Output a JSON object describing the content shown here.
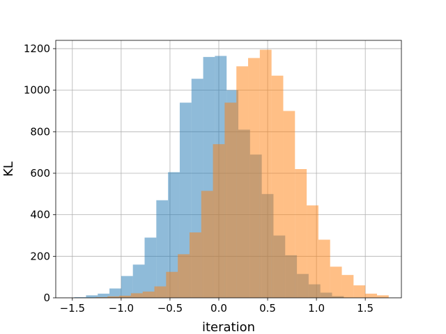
{
  "chart_data": {
    "type": "bar",
    "subtype": "overlapping-histogram",
    "xlabel": "iteration",
    "ylabel": "KL",
    "xlim": [
      -1.67,
      1.87
    ],
    "ylim": [
      0,
      1240
    ],
    "grid": true,
    "x_ticks": [
      -1.5,
      -1.0,
      -0.5,
      0.0,
      0.5,
      1.0,
      1.5
    ],
    "x_tick_labels": [
      "−1.5",
      "−1.0",
      "−0.5",
      "0.0",
      "0.5",
      "1.0",
      "1.5"
    ],
    "y_ticks": [
      0,
      200,
      400,
      600,
      800,
      1000,
      1200
    ],
    "y_tick_labels": [
      "0",
      "200",
      "400",
      "600",
      "800",
      "1000",
      "1200"
    ],
    "series": [
      {
        "color": "#1f77b4",
        "opacity": 0.5,
        "bin_edges": [
          -1.48,
          -1.36,
          -1.24,
          -1.12,
          -1.0,
          -0.88,
          -0.76,
          -0.64,
          -0.52,
          -0.4,
          -0.28,
          -0.16,
          -0.04,
          0.08,
          0.2,
          0.32,
          0.44,
          0.56,
          0.68,
          0.8,
          0.92,
          1.04,
          1.16,
          1.28
        ],
        "values": [
          3,
          12,
          20,
          45,
          105,
          160,
          290,
          470,
          605,
          940,
          1055,
          1160,
          1165,
          1000,
          810,
          690,
          500,
          300,
          205,
          115,
          65,
          25,
          8
        ]
      },
      {
        "color": "#ff7f0e",
        "opacity": 0.5,
        "bin_edges": [
          -1.26,
          -1.14,
          -1.02,
          -0.9,
          -0.78,
          -0.66,
          -0.54,
          -0.42,
          -0.3,
          -0.18,
          -0.06,
          0.06,
          0.18,
          0.3,
          0.42,
          0.54,
          0.66,
          0.78,
          0.9,
          1.02,
          1.14,
          1.26,
          1.38,
          1.5,
          1.62,
          1.74
        ],
        "values": [
          3,
          7,
          10,
          22,
          30,
          55,
          125,
          210,
          315,
          515,
          740,
          940,
          1115,
          1155,
          1195,
          1070,
          900,
          620,
          445,
          280,
          150,
          110,
          60,
          20,
          12
        ]
      }
    ]
  }
}
